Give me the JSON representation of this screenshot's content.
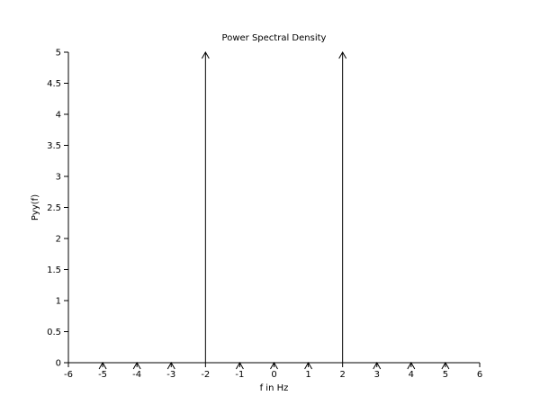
{
  "chart_data": {
    "type": "stem",
    "title": "Power Spectral Density",
    "xlabel": "f in Hz",
    "ylabel": "Pyy(f)",
    "xlim": [
      -6,
      6
    ],
    "ylim": [
      0,
      5
    ],
    "xticks": [
      -6,
      -5,
      -4,
      -3,
      -2,
      -1,
      0,
      1,
      2,
      3,
      4,
      5,
      6
    ],
    "yticks": [
      0,
      0.5,
      1,
      1.5,
      2,
      2.5,
      3,
      3.5,
      4,
      4.5,
      5
    ],
    "grid": false,
    "series": [
      {
        "x": [
          -5,
          -4,
          -3,
          -2,
          -1,
          0,
          1,
          2,
          3,
          4,
          5
        ],
        "y": [
          0,
          0,
          0,
          5,
          0,
          0,
          0,
          5,
          0,
          0,
          0
        ],
        "marker": "arrow-up"
      }
    ],
    "colors": {
      "line": "#000000"
    }
  }
}
